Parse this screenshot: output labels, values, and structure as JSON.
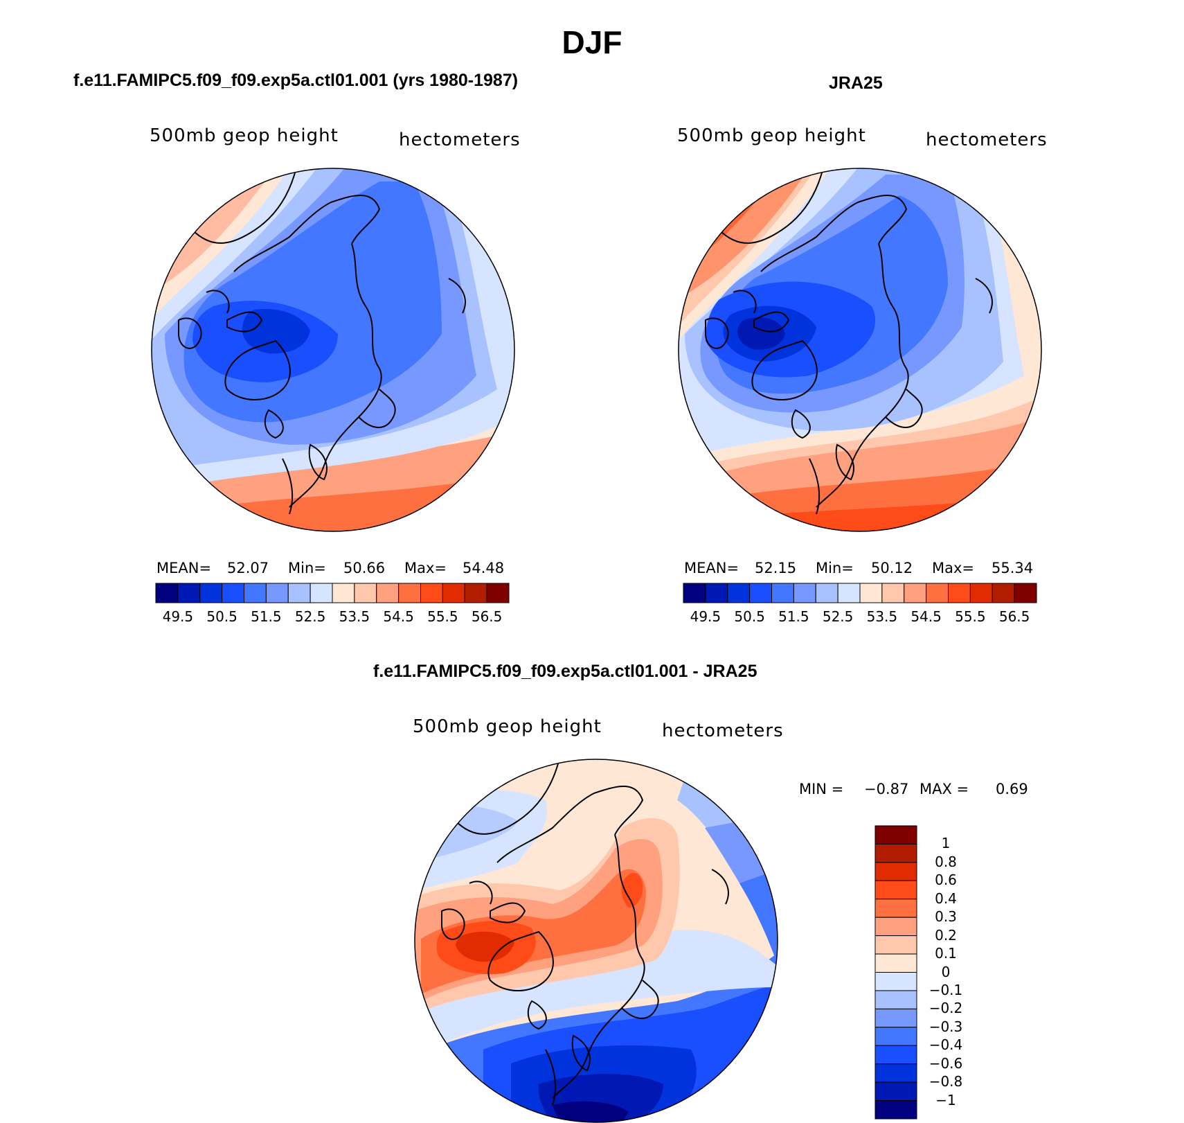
{
  "figure": {
    "title": "DJF"
  },
  "palettes": {
    "abs": [
      "#000080",
      "#0019b4",
      "#0033dc",
      "#1a4fff",
      "#4477ff",
      "#7799ff",
      "#a8c2ff",
      "#d6e4ff",
      "#ffe7d6",
      "#ffc8ad",
      "#ffa07f",
      "#ff7040",
      "#ff4b17",
      "#e02c00",
      "#b21d00",
      "#800000"
    ],
    "diff": [
      "#000080",
      "#0019b4",
      "#0033dc",
      "#1a4fff",
      "#4477ff",
      "#7799ff",
      "#a8c2ff",
      "#d6e4ff",
      "#ffe7d6",
      "#ffc8ad",
      "#ffa07f",
      "#ff7040",
      "#ff4b17",
      "#e02c00",
      "#b21d00",
      "#800000"
    ],
    "coast": "#000000"
  },
  "panels": [
    {
      "id": "model",
      "title": "f.e11.FAMIPC5.f09_f09.exp5a.ctl01.001 (yrs 1980-1987)",
      "variable": "500mb geop height",
      "units": "hectometers",
      "stats": {
        "mean_label": "MEAN=",
        "mean": "52.07",
        "min_label": "Min=",
        "min": "50.66",
        "max_label": "Max=",
        "max": "54.48"
      },
      "colorbar_labels": [
        "49.5",
        "50.5",
        "51.5",
        "52.5",
        "53.5",
        "54.5",
        "55.5",
        "56.5"
      ]
    },
    {
      "id": "obs",
      "title": "JRA25",
      "variable": "500mb geop height",
      "units": "hectometers",
      "stats": {
        "mean_label": "MEAN=",
        "mean": "52.15",
        "min_label": "Min=",
        "min": "50.12",
        "max_label": "Max=",
        "max": "55.34"
      },
      "colorbar_labels": [
        "49.5",
        "50.5",
        "51.5",
        "52.5",
        "53.5",
        "54.5",
        "55.5",
        "56.5"
      ]
    },
    {
      "id": "diff",
      "title": "f.e11.FAMIPC5.f09_f09.exp5a.ctl01.001 - JRA25",
      "variable": "500mb geop height",
      "units": "hectometers",
      "stats": {
        "min_label": "MIN =",
        "min": "−0.87",
        "max_label": "MAX =",
        "max": "0.69"
      },
      "colorbar_labels": [
        "1",
        "0.8",
        "0.6",
        "0.4",
        "0.3",
        "0.2",
        "0.1",
        "0",
        "−0.1",
        "−0.2",
        "−0.3",
        "−0.4",
        "−0.6",
        "−0.8",
        "−1"
      ]
    }
  ]
}
